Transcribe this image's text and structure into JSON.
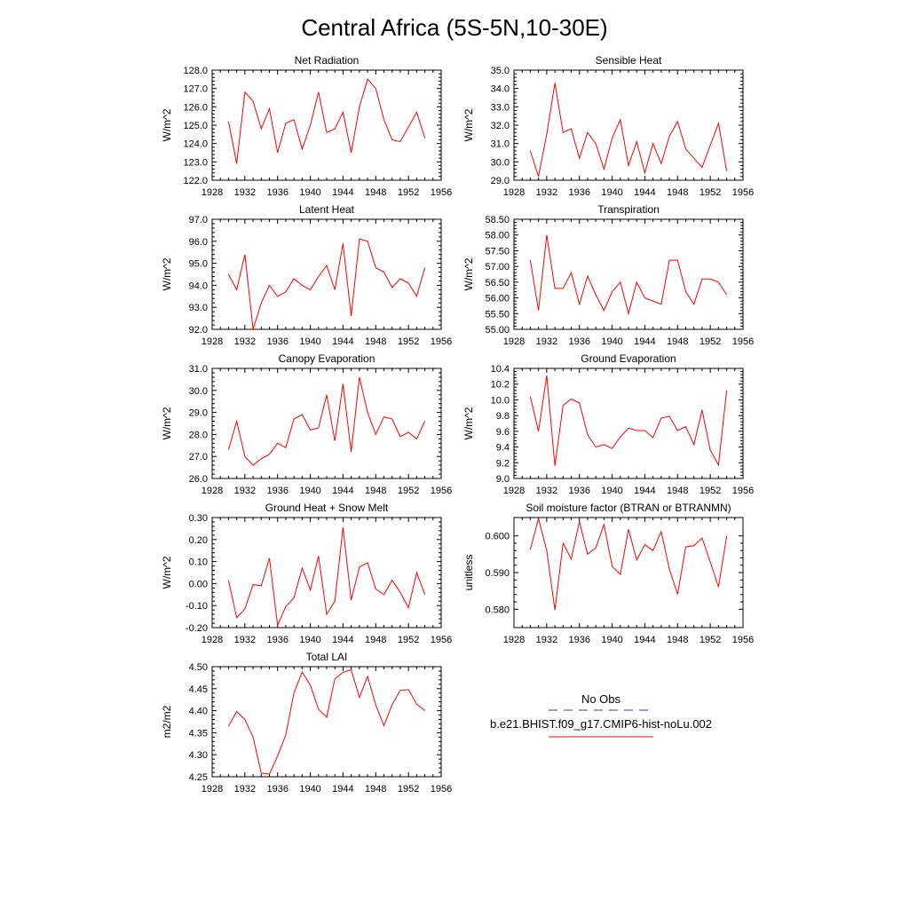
{
  "figure": {
    "title": "Central Africa (5S-5N,10-30E)"
  },
  "legend": {
    "entries": [
      {
        "label": "No Obs",
        "color": "#3c3c8c",
        "dashed": true
      },
      {
        "label": "b.e21.BHIST.f09_g17.CMIP6-hist-noLu.002",
        "color": "#ff0000",
        "dashed": false
      }
    ]
  },
  "chart_data": [
    {
      "type": "line",
      "title": "Net Radiation",
      "ylabel": "W/m^2",
      "xlim": [
        1928,
        1956
      ],
      "ylim": [
        122.0,
        128.0
      ],
      "xticks": [
        1928,
        1932,
        1936,
        1940,
        1944,
        1948,
        1952,
        1956
      ],
      "yticks": [
        "122.0",
        "123.0",
        "124.0",
        "125.0",
        "126.0",
        "127.0",
        "128.0"
      ],
      "x": [
        1930,
        1931,
        1932,
        1933,
        1934,
        1935,
        1936,
        1937,
        1938,
        1939,
        1940,
        1941,
        1942,
        1943,
        1944,
        1945,
        1946,
        1947,
        1948,
        1949,
        1950,
        1951,
        1952,
        1953,
        1954
      ],
      "series": [
        {
          "color": "#ff0000",
          "values": [
            125.2,
            122.9,
            126.8,
            126.3,
            124.8,
            125.9,
            123.5,
            125.1,
            125.3,
            123.7,
            125.0,
            126.8,
            124.6,
            124.8,
            125.7,
            123.5,
            126.0,
            127.5,
            127.0,
            125.3,
            124.2,
            124.1,
            124.9,
            125.7,
            124.3
          ]
        }
      ]
    },
    {
      "type": "line",
      "title": "Sensible Heat",
      "ylabel": "W/m^2",
      "xlim": [
        1928,
        1956
      ],
      "ylim": [
        29.0,
        35.0
      ],
      "xticks": [
        1928,
        1932,
        1936,
        1940,
        1944,
        1948,
        1952,
        1956
      ],
      "yticks": [
        "29.0",
        "30.0",
        "31.0",
        "32.0",
        "33.0",
        "34.0",
        "35.0"
      ],
      "x": [
        1930,
        1931,
        1932,
        1933,
        1934,
        1935,
        1936,
        1937,
        1938,
        1939,
        1940,
        1941,
        1942,
        1943,
        1944,
        1945,
        1946,
        1947,
        1948,
        1949,
        1950,
        1951,
        1952,
        1953,
        1954
      ],
      "series": [
        {
          "color": "#ff0000",
          "values": [
            30.6,
            29.2,
            31.5,
            34.3,
            31.6,
            31.8,
            30.2,
            31.6,
            31.0,
            29.6,
            31.3,
            32.3,
            29.8,
            31.1,
            29.4,
            31.0,
            29.9,
            31.4,
            32.2,
            30.7,
            30.2,
            29.7,
            30.9,
            32.1,
            29.5
          ]
        }
      ]
    },
    {
      "type": "line",
      "title": "Latent Heat",
      "ylabel": "W/m^2",
      "xlim": [
        1928,
        1956
      ],
      "ylim": [
        92.0,
        97.0
      ],
      "xticks": [
        1928,
        1932,
        1936,
        1940,
        1944,
        1948,
        1952,
        1956
      ],
      "yticks": [
        "92.0",
        "93.0",
        "94.0",
        "95.0",
        "96.0",
        "97.0"
      ],
      "x": [
        1930,
        1931,
        1932,
        1933,
        1934,
        1935,
        1936,
        1937,
        1938,
        1939,
        1940,
        1941,
        1942,
        1943,
        1944,
        1945,
        1946,
        1947,
        1948,
        1949,
        1950,
        1951,
        1952,
        1953,
        1954
      ],
      "series": [
        {
          "color": "#ff0000",
          "values": [
            94.5,
            93.8,
            95.4,
            92.0,
            93.2,
            94.0,
            93.5,
            93.7,
            94.3,
            94.0,
            93.8,
            94.4,
            94.9,
            93.8,
            95.9,
            92.6,
            96.1,
            96.0,
            94.8,
            94.6,
            93.9,
            94.3,
            94.1,
            93.5,
            94.8
          ]
        }
      ]
    },
    {
      "type": "line",
      "title": "Transpiration",
      "ylabel": "W/m^2",
      "xlim": [
        1928,
        1956
      ],
      "ylim": [
        55.0,
        58.5
      ],
      "xticks": [
        1928,
        1932,
        1936,
        1940,
        1944,
        1948,
        1952,
        1956
      ],
      "yticks": [
        "55.00",
        "55.50",
        "56.00",
        "56.50",
        "57.00",
        "57.50",
        "58.00",
        "58.50"
      ],
      "x": [
        1930,
        1931,
        1932,
        1933,
        1934,
        1935,
        1936,
        1937,
        1938,
        1939,
        1940,
        1941,
        1942,
        1943,
        1944,
        1945,
        1946,
        1947,
        1948,
        1949,
        1950,
        1951,
        1952,
        1953,
        1954
      ],
      "series": [
        {
          "color": "#ff0000",
          "values": [
            57.2,
            55.6,
            58.0,
            56.3,
            56.3,
            56.8,
            55.8,
            56.7,
            56.1,
            55.6,
            56.2,
            56.5,
            55.5,
            56.5,
            56.0,
            55.9,
            55.8,
            57.2,
            57.2,
            56.2,
            55.8,
            56.6,
            56.6,
            56.5,
            56.1
          ]
        }
      ]
    },
    {
      "type": "line",
      "title": "Canopy Evaporation",
      "ylabel": "W/m^2",
      "xlim": [
        1928,
        1956
      ],
      "ylim": [
        26.0,
        31.0
      ],
      "xticks": [
        1928,
        1932,
        1936,
        1940,
        1944,
        1948,
        1952,
        1956
      ],
      "yticks": [
        "26.0",
        "27.0",
        "28.0",
        "29.0",
        "30.0",
        "31.0"
      ],
      "x": [
        1930,
        1931,
        1932,
        1933,
        1934,
        1935,
        1936,
        1937,
        1938,
        1939,
        1940,
        1941,
        1942,
        1943,
        1944,
        1945,
        1946,
        1947,
        1948,
        1949,
        1950,
        1951,
        1952,
        1953,
        1954
      ],
      "series": [
        {
          "color": "#ff0000",
          "values": [
            27.3,
            28.6,
            27.0,
            26.6,
            26.9,
            27.1,
            27.6,
            27.4,
            28.7,
            28.9,
            28.2,
            28.3,
            29.8,
            27.7,
            30.3,
            27.2,
            30.6,
            29.0,
            28.0,
            28.8,
            28.7,
            27.9,
            28.1,
            27.8,
            28.6
          ]
        }
      ]
    },
    {
      "type": "line",
      "title": "Ground Evaporation",
      "ylabel": "W/m^2",
      "xlim": [
        1928,
        1956
      ],
      "ylim": [
        9.0,
        10.4
      ],
      "xticks": [
        1928,
        1932,
        1936,
        1940,
        1944,
        1948,
        1952,
        1956
      ],
      "yticks": [
        "9.0",
        "9.2",
        "9.4",
        "9.6",
        "9.8",
        "10.0",
        "10.2",
        "10.4"
      ],
      "x": [
        1930,
        1931,
        1932,
        1933,
        1934,
        1935,
        1936,
        1937,
        1938,
        1939,
        1940,
        1941,
        1942,
        1943,
        1944,
        1945,
        1946,
        1947,
        1948,
        1949,
        1950,
        1951,
        1952,
        1953,
        1954
      ],
      "series": [
        {
          "color": "#ff0000",
          "values": [
            10.04,
            9.6,
            10.31,
            9.16,
            9.93,
            10.01,
            9.96,
            9.56,
            9.4,
            9.43,
            9.38,
            9.53,
            9.64,
            9.61,
            9.61,
            9.52,
            9.77,
            9.79,
            9.61,
            9.66,
            9.43,
            9.87,
            9.36,
            9.17,
            10.12
          ]
        }
      ]
    },
    {
      "type": "line",
      "title": "Ground Heat + Snow Melt",
      "ylabel": "W/m^2",
      "xlim": [
        1928,
        1956
      ],
      "ylim": [
        -0.2,
        0.3
      ],
      "xticks": [
        1928,
        1932,
        1936,
        1940,
        1944,
        1948,
        1952,
        1956
      ],
      "yticks": [
        "-0.20",
        "-0.10",
        "0.00",
        "0.10",
        "0.20",
        "0.30"
      ],
      "x": [
        1930,
        1931,
        1932,
        1933,
        1934,
        1935,
        1936,
        1937,
        1938,
        1939,
        1940,
        1941,
        1942,
        1943,
        1944,
        1945,
        1946,
        1947,
        1948,
        1949,
        1950,
        1951,
        1952,
        1953,
        1954
      ],
      "series": [
        {
          "color": "#ff0000",
          "values": [
            0.015,
            -0.155,
            -0.115,
            -0.005,
            -0.01,
            0.115,
            -0.19,
            -0.105,
            -0.065,
            0.07,
            -0.03,
            0.125,
            -0.14,
            -0.08,
            0.255,
            -0.075,
            0.075,
            0.095,
            -0.025,
            -0.05,
            0.015,
            -0.04,
            -0.11,
            0.05,
            -0.05
          ]
        }
      ]
    },
    {
      "type": "line",
      "title": "Soil moisture factor (BTRAN or BTRANMN)",
      "ylabel": "unitless",
      "xlim": [
        1928,
        1956
      ],
      "ylim": [
        0.575,
        0.605
      ],
      "xticks": [
        1928,
        1932,
        1936,
        1940,
        1944,
        1948,
        1952,
        1956
      ],
      "yticks": [
        "0.580",
        "0.590",
        "0.600"
      ],
      "ytick_values": [
        0.58,
        0.59,
        0.6
      ],
      "x": [
        1930,
        1931,
        1932,
        1933,
        1934,
        1935,
        1936,
        1937,
        1938,
        1939,
        1940,
        1941,
        1942,
        1943,
        1944,
        1945,
        1946,
        1947,
        1948,
        1949,
        1950,
        1951,
        1952,
        1953,
        1954
      ],
      "series": [
        {
          "color": "#ff0000",
          "values": [
            0.5963,
            0.6047,
            0.596,
            0.5798,
            0.598,
            0.5937,
            0.6039,
            0.595,
            0.5967,
            0.6031,
            0.5917,
            0.5895,
            0.6018,
            0.5934,
            0.5976,
            0.596,
            0.6012,
            0.5909,
            0.5841,
            0.597,
            0.5973,
            0.5994,
            0.5929,
            0.5861,
            0.6
          ]
        }
      ]
    },
    {
      "type": "line",
      "title": "Total LAI",
      "ylabel": "m2/m2",
      "xlim": [
        1928,
        1956
      ],
      "ylim": [
        4.25,
        4.5
      ],
      "xticks": [
        1928,
        1932,
        1936,
        1940,
        1944,
        1948,
        1952,
        1956
      ],
      "yticks": [
        "4.25",
        "4.30",
        "4.35",
        "4.40",
        "4.45",
        "4.50"
      ],
      "x": [
        1930,
        1931,
        1932,
        1933,
        1934,
        1935,
        1936,
        1937,
        1938,
        1939,
        1940,
        1941,
        1942,
        1943,
        1944,
        1945,
        1946,
        1947,
        1948,
        1949,
        1950,
        1951,
        1952,
        1953,
        1954
      ],
      "series": [
        {
          "color": "#ff0000",
          "values": [
            4.365,
            4.398,
            4.38,
            4.34,
            4.258,
            4.256,
            4.297,
            4.345,
            4.44,
            4.488,
            4.458,
            4.403,
            4.385,
            4.472,
            4.487,
            4.493,
            4.43,
            4.478,
            4.413,
            4.366,
            4.414,
            4.446,
            4.448,
            4.415,
            4.4
          ]
        }
      ]
    }
  ]
}
